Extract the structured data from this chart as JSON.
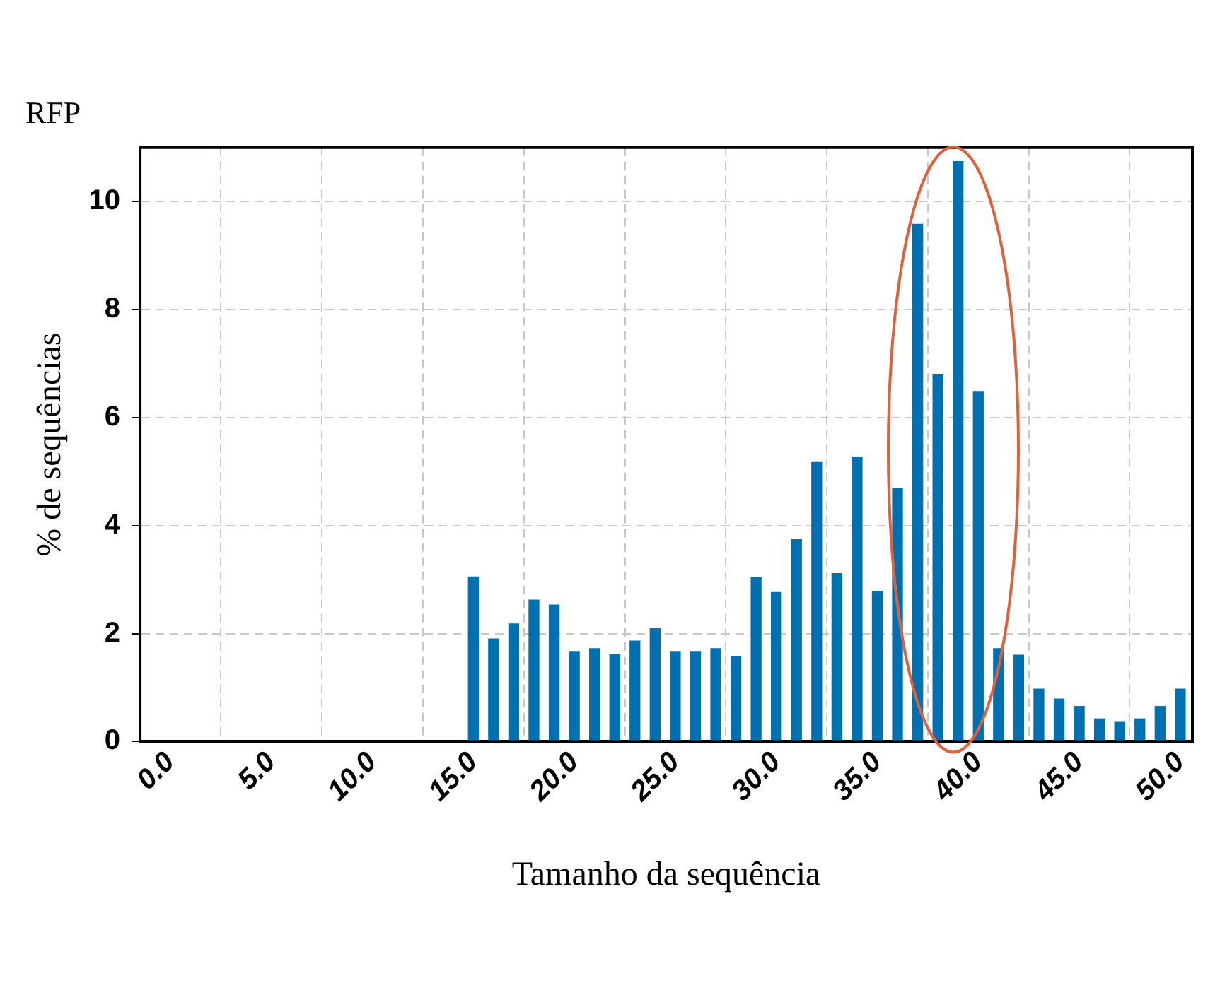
{
  "chart_data": {
    "type": "bar",
    "title": "RFP",
    "xlabel": "Tamanho da sequência",
    "ylabel": "% de sequências",
    "x": [
      15,
      16,
      17,
      18,
      19,
      20,
      21,
      22,
      23,
      24,
      25,
      26,
      27,
      28,
      29,
      30,
      31,
      32,
      33,
      34,
      35,
      36,
      37,
      38,
      39,
      40,
      41,
      42,
      43,
      44,
      45,
      46,
      47,
      48,
      49,
      50
    ],
    "values": [
      3.05,
      1.9,
      2.18,
      2.62,
      2.53,
      1.67,
      1.72,
      1.62,
      1.86,
      2.09,
      1.67,
      1.67,
      1.72,
      1.58,
      3.04,
      2.76,
      3.74,
      5.17,
      3.11,
      5.27,
      2.78,
      4.69,
      9.58,
      6.8,
      10.74,
      6.47,
      1.72,
      1.6,
      0.97,
      0.79,
      0.65,
      0.42,
      0.37,
      0.42,
      0.65,
      0.97
    ],
    "color": "#0070b0",
    "xlim": [
      -1.5,
      50.6
    ],
    "xticks": [
      {
        "value": 0,
        "label": "0.0"
      },
      {
        "value": 5,
        "label": "5.0"
      },
      {
        "value": 10,
        "label": "10.0"
      },
      {
        "value": 15,
        "label": "15.0"
      },
      {
        "value": 20,
        "label": "20.0"
      },
      {
        "value": 25,
        "label": "25.0"
      },
      {
        "value": 30,
        "label": "30.0"
      },
      {
        "value": 35,
        "label": "35.0"
      },
      {
        "value": 40,
        "label": "40.0"
      },
      {
        "value": 45,
        "label": "45.0"
      },
      {
        "value": 50,
        "label": "50.0"
      }
    ],
    "ylim": [
      0,
      11
    ],
    "yticks": [
      0,
      2,
      4,
      6,
      8,
      10
    ],
    "grid": true
  }
}
